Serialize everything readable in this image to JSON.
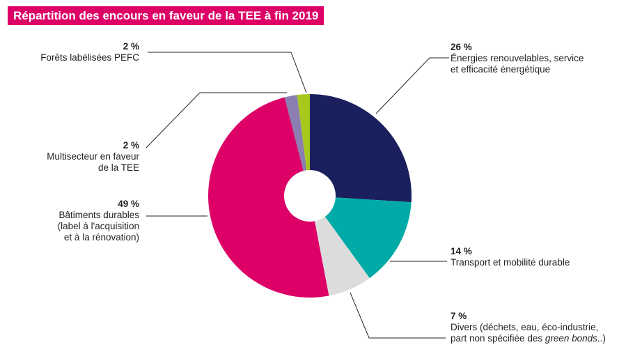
{
  "chart_data": {
    "type": "pie",
    "title": "Répartition des encours en faveur de la TEE à fin 2019",
    "unit": "%",
    "slices": [
      {
        "value": 26,
        "pct_label": "26 %",
        "label": [
          "Énergies renouvelables, service",
          "et efficacité énergétique"
        ],
        "color": "#1a1f5e"
      },
      {
        "value": 14,
        "pct_label": "14 %",
        "label": [
          "Transport et mobilité durable"
        ],
        "color": "#00aaa6"
      },
      {
        "value": 7,
        "pct_label": "7 %",
        "label": [
          "Divers (déchets, eau, éco-industrie,",
          "part non spécifiée des "
        ],
        "label_italic": "green bonds",
        "label_tail": "..)",
        "color": "#dcdcdc"
      },
      {
        "value": 49,
        "pct_label": "49 %",
        "label": [
          "Bâtiments durables",
          "(label à l'acquisition",
          "et à la rénovation)"
        ],
        "color": "#dc0067"
      },
      {
        "value": 2,
        "pct_label": "2 %",
        "label": [
          "Multisecteur en faveur",
          "de la TEE"
        ],
        "color": "#8a7fb0"
      },
      {
        "value": 2,
        "pct_label": "2 %",
        "label": [
          "Forêts labélisées PEFC"
        ],
        "color": "#a8c81e"
      }
    ]
  }
}
